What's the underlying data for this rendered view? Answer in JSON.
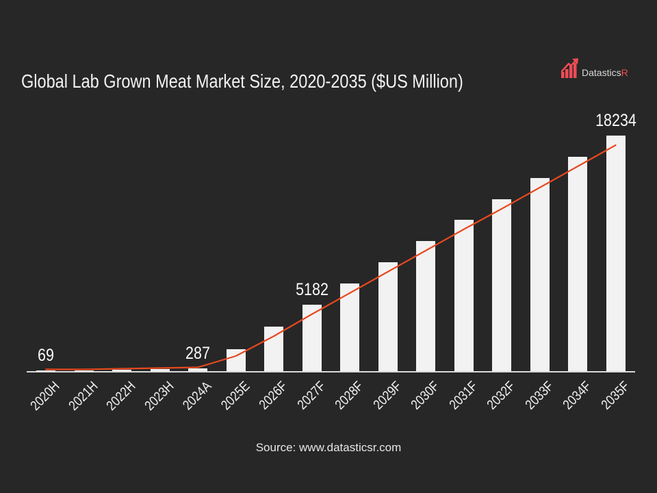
{
  "title": "Global Lab Grown Meat Market Size, 2020-2035 ($US Million)",
  "logo": {
    "name": "Datastics",
    "suffix": "R"
  },
  "source": "Source: www.datasticsr.com",
  "colors": {
    "background": "#272727",
    "bar": "#f2f2f2",
    "trend_line": "#e8491f",
    "axis_line": "#d9d9d9",
    "text": "#f2f2f2",
    "logo_accent": "#ee4c56"
  },
  "chart_data": {
    "type": "bar",
    "title": "Global Lab Grown Meat Market Size, 2020-2035 ($US Million)",
    "unit": "$US Million",
    "categories": [
      "2020H",
      "2021H",
      "2022H",
      "2023H",
      "2024A",
      "2025E",
      "2026F",
      "2027F",
      "2028F",
      "2029F",
      "2030F",
      "2031F",
      "2032F",
      "2033F",
      "2034F",
      "2035F"
    ],
    "values": [
      69,
      100,
      150,
      200,
      287,
      1750,
      3480,
      5182,
      6814,
      8445,
      10077,
      11708,
      13340,
      14971,
      16603,
      18234
    ],
    "data_labels": {
      "2020H": "69",
      "2024A": "287",
      "2027F": "5182",
      "2035F": "18234"
    },
    "trend_line": true,
    "ylim": [
      0,
      18234
    ],
    "grid": false,
    "legend": false,
    "y_axis_visible": false
  }
}
